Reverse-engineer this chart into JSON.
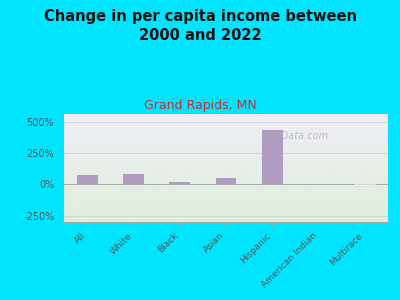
{
  "title": "Change in per capita income between\n2000 and 2022",
  "subtitle": "Grand Rapids, MN",
  "categories": [
    "All",
    "White",
    "Black",
    "Asian",
    "Hispanic",
    "American Indian",
    "Multirace"
  ],
  "values": [
    75,
    85,
    18,
    48,
    430,
    0,
    -12
  ],
  "bar_color": "#b09cc0",
  "bar_color_multirace": "#f0f0f0",
  "ylim": [
    -300,
    560
  ],
  "yticks": [
    -250,
    0,
    250,
    500
  ],
  "ytick_labels": [
    "-250%",
    "0%",
    "250%",
    "500%"
  ],
  "background_outer": "#00e5ff",
  "background_inner_top": "#f0eef5",
  "background_inner_bottom": "#deeedd",
  "title_fontsize": 10.5,
  "subtitle_fontsize": 9,
  "subtitle_color": "#bb3333",
  "axis_label_color": "#555555",
  "watermark": "ty-Data.com",
  "title_color": "#111111"
}
